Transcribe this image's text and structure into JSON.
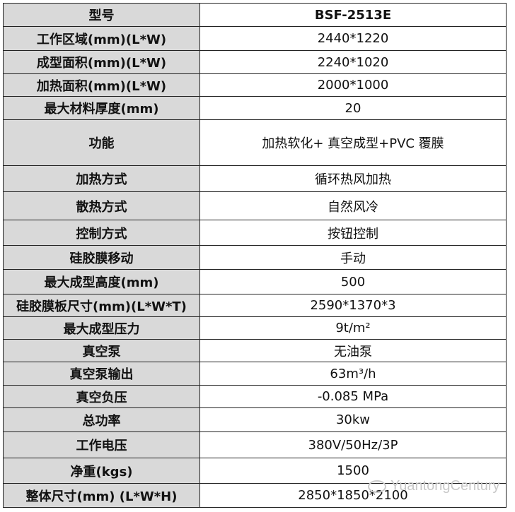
{
  "rows": [
    {
      "k": "型号",
      "v": "BSF-2513E",
      "h": 33
    },
    {
      "k": "工作区域(mm)(L*W)",
      "v": "2440*1220",
      "h": 34
    },
    {
      "k": "成型面积(mm)(L*W)",
      "v": "2240*1020",
      "h": 33
    },
    {
      "k": "加热面积(mm)(L*W)",
      "v": "2000*1000",
      "h": 32
    },
    {
      "k": "最大材料厚度(mm)",
      "v": "20",
      "h": 33
    },
    {
      "k": "功能",
      "v": "加热软化+ 真空成型+PVC 覆膜",
      "h": 65
    },
    {
      "k": "加热方式",
      "v": "循环热风加热",
      "h": 37
    },
    {
      "k": "散热方式",
      "v": "自然风冷",
      "h": 40
    },
    {
      "k": "控制方式",
      "v": "按钮控制",
      "h": 36
    },
    {
      "k": "硅胶膜移动",
      "v": "手动",
      "h": 34
    },
    {
      "k": "最大成型高度(mm)",
      "v": "500",
      "h": 35
    },
    {
      "k": "硅胶膜板尺寸(mm)(L*W*T)",
      "v": "2590*1370*3",
      "h": 32
    },
    {
      "k": "最大成型压力",
      "v": "9t/m²",
      "h": 32
    },
    {
      "k": "真空泵",
      "v": "无油泵",
      "h": 32
    },
    {
      "k": "真空泵输出",
      "v": "63m³/h",
      "h": 33
    },
    {
      "k": "真空负压",
      "v": "-0.085 MPa",
      "h": 32
    },
    {
      "k": "总功率",
      "v": "30kw",
      "h": 34
    },
    {
      "k": "工作电压",
      "v": "380V/50Hz/3P",
      "h": 37
    },
    {
      "k": "净重(kgs)",
      "v": "1500",
      "h": 36
    },
    {
      "k": "整体尺寸(mm) (L*W*H)",
      "v": "2850*1850*2100",
      "h": 34
    }
  ],
  "watermark": "YuantongCentury"
}
